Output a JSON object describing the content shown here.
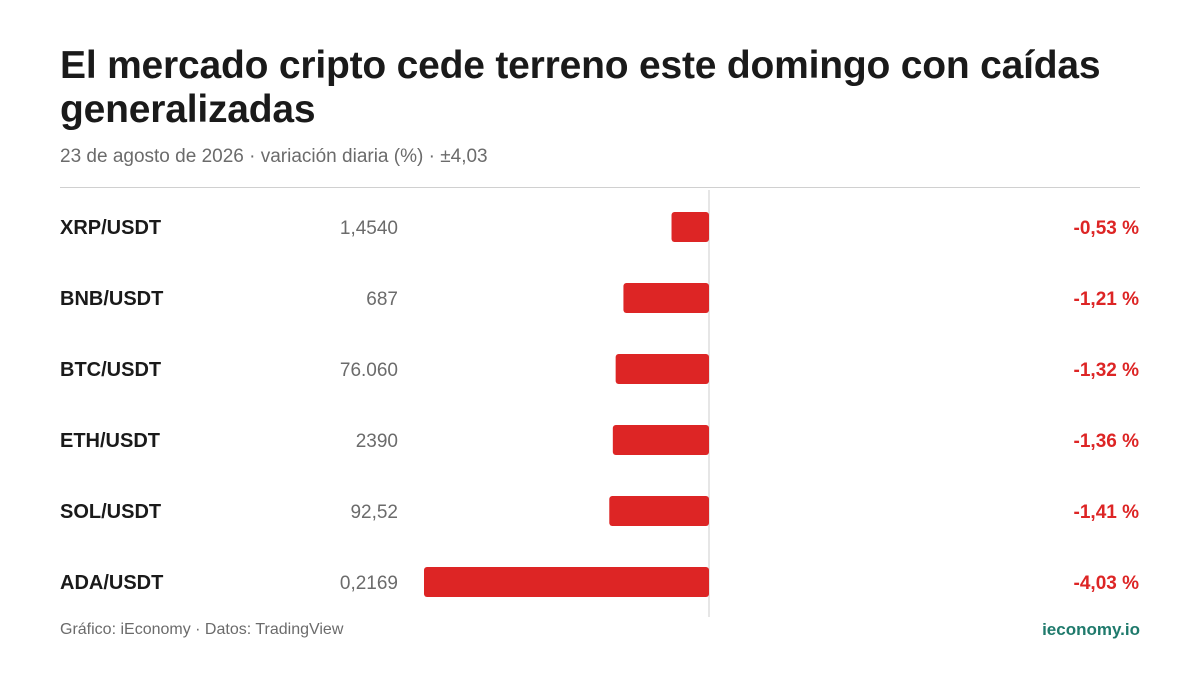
{
  "title": "El mercado cripto cede terreno este domingo con caídas generalizadas",
  "subtitle": "23 de agosto de 2026 · variación diaria (%) · ±4,03",
  "footer": {
    "source": "Gráfico: iEconomy · Datos: TradingView",
    "brand": "ieconomy.io"
  },
  "colors": {
    "negative": "#dd2525",
    "brand": "#1f7a6c"
  },
  "chart_data": {
    "type": "bar",
    "orientation": "horizontal",
    "xlim": [
      -4.03,
      4.03
    ],
    "rows": [
      {
        "pair": "XRP/USDT",
        "price": "1,4540",
        "change": -0.53,
        "label": "-0,53 %"
      },
      {
        "pair": "BNB/USDT",
        "price": "687",
        "change": -1.21,
        "label": "-1,21 %"
      },
      {
        "pair": "BTC/USDT",
        "price": "76.060",
        "change": -1.32,
        "label": "-1,32 %"
      },
      {
        "pair": "ETH/USDT",
        "price": "2390",
        "change": -1.36,
        "label": "-1,36 %"
      },
      {
        "pair": "SOL/USDT",
        "price": "92,52",
        "change": -1.41,
        "label": "-1,41 %"
      },
      {
        "pair": "ADA/USDT",
        "price": "0,2169",
        "change": -4.03,
        "label": "-4,03 %"
      }
    ]
  }
}
